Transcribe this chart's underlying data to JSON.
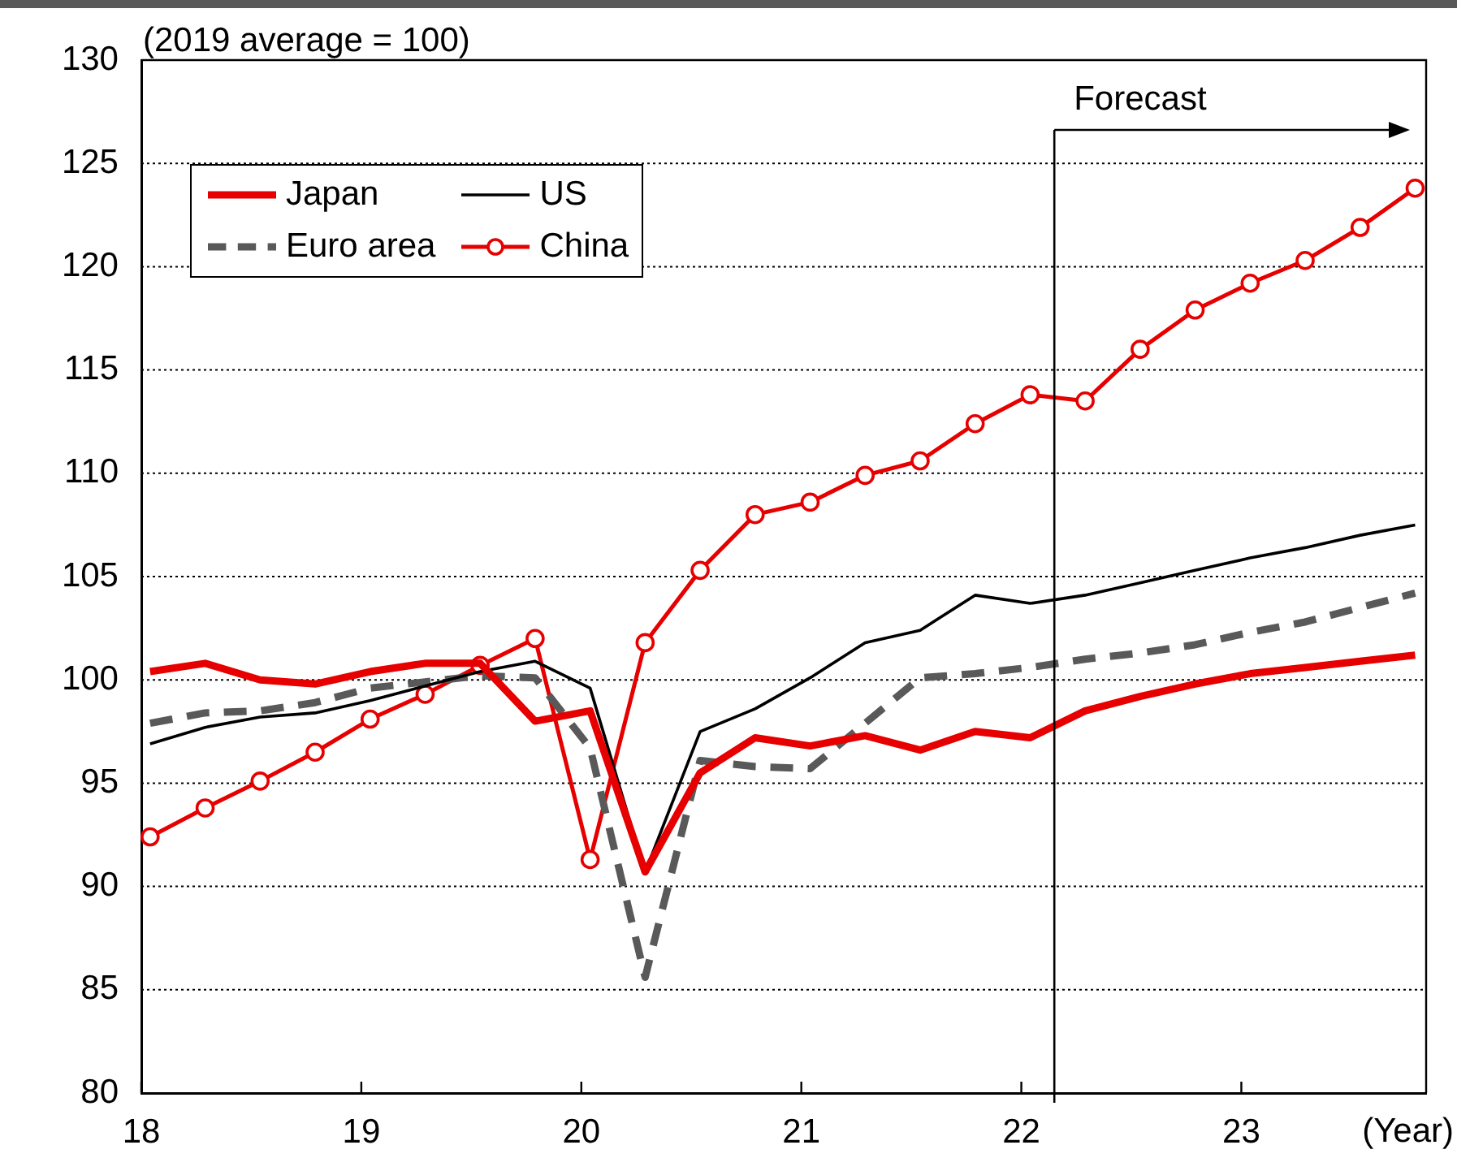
{
  "chart_data": {
    "type": "line",
    "ylabel": "(2019 average = 100)",
    "xlabel": "(Year)",
    "x": [
      18.04,
      18.29,
      18.54,
      18.79,
      19.04,
      19.29,
      19.54,
      19.79,
      20.04,
      20.29,
      20.54,
      20.79,
      21.04,
      21.29,
      21.54,
      21.79,
      22.04,
      22.29,
      22.54,
      22.79,
      23.04,
      23.29,
      23.54,
      23.79
    ],
    "series": [
      {
        "name": "Japan",
        "color": "#e60000",
        "line_style": "solid",
        "marker": "none",
        "values": [
          100.4,
          100.8,
          100.0,
          99.8,
          100.4,
          100.8,
          100.8,
          98.0,
          98.5,
          90.7,
          95.5,
          97.2,
          96.8,
          97.3,
          96.6,
          97.5,
          97.2,
          98.5,
          99.2,
          99.8,
          100.3,
          100.6,
          100.9,
          101.2
        ]
      },
      {
        "name": "US",
        "color": "#000000",
        "line_style": "solid",
        "marker": "none",
        "values": [
          96.9,
          97.7,
          98.2,
          98.4,
          99.0,
          99.7,
          100.4,
          100.9,
          99.6,
          90.7,
          97.5,
          98.6,
          100.1,
          101.8,
          102.4,
          104.1,
          103.7,
          104.1,
          104.7,
          105.3,
          105.9,
          106.4,
          107.0,
          107.5
        ]
      },
      {
        "name": "Euro area",
        "color": "#595959",
        "line_style": "dashed",
        "marker": "none",
        "values": [
          97.9,
          98.4,
          98.5,
          98.9,
          99.6,
          99.9,
          100.2,
          100.1,
          96.7,
          85.6,
          96.1,
          95.8,
          95.7,
          97.9,
          100.1,
          100.3,
          100.6,
          101.0,
          101.3,
          101.7,
          102.3,
          102.8,
          103.5,
          104.2
        ]
      },
      {
        "name": "China",
        "color": "#e60000",
        "line_style": "solid",
        "marker": "circle",
        "values": [
          92.4,
          93.8,
          95.1,
          96.5,
          98.1,
          99.3,
          100.7,
          102.0,
          91.3,
          101.8,
          105.3,
          108.0,
          108.6,
          109.9,
          110.6,
          112.4,
          113.8,
          113.5,
          116.0,
          117.9,
          119.2,
          120.3,
          121.9,
          123.8
        ]
      }
    ],
    "xlim": [
      18,
      23.84
    ],
    "xticks": [
      18,
      19,
      20,
      21,
      22,
      23
    ],
    "ylim": [
      80,
      130
    ],
    "yticks": [
      80,
      85,
      90,
      95,
      100,
      105,
      110,
      115,
      120,
      125,
      130
    ],
    "ref_lines": [
      {
        "axis": "x",
        "value": 22.15,
        "label": "Forecast"
      }
    ],
    "grid": "y",
    "legend": "top left"
  }
}
